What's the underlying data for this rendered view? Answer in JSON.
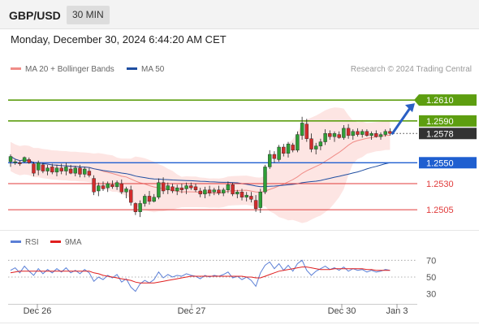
{
  "header": {
    "pair": "GBP/USD",
    "timeframe": "30 MIN"
  },
  "timestamp": "Monday, December 30, 2024 6:44:20 AM CET",
  "legend": {
    "ma20": {
      "label": "MA 20 + Bollinger Bands",
      "color": "#f08c87"
    },
    "ma50": {
      "label": "MA 50",
      "color": "#1f4ea1"
    },
    "credit": "Research © 2024 Trading Central"
  },
  "rsi_legend": {
    "rsi": {
      "label": "RSI",
      "color": "#5b7fd6"
    },
    "ma9": {
      "label": "9MA",
      "color": "#e01f1f"
    }
  },
  "chart_data": [
    {
      "type": "candlestick",
      "ylim": [
        1.2488,
        1.2628
      ],
      "x_axis": {
        "ticks": [
          "Dec 26",
          "Dec 27",
          "Dec 30",
          "Jan 3"
        ]
      },
      "levels": [
        {
          "value": 1.261,
          "label": "1.2610",
          "kind": "target",
          "color": "#5d9e10"
        },
        {
          "value": 1.259,
          "label": "1.2590",
          "kind": "resistance",
          "color": "#5d9e10"
        },
        {
          "value": 1.2578,
          "label": "1.2578",
          "kind": "last-price",
          "color": "#333333"
        },
        {
          "value": 1.255,
          "label": "1.2550",
          "kind": "pivot",
          "color": "#1f5fd0"
        },
        {
          "value": 1.253,
          "label": "1.2530",
          "kind": "support",
          "color": "#e03a3a"
        },
        {
          "value": 1.2505,
          "label": "1.2505",
          "kind": "support",
          "color": "#e03a3a"
        }
      ],
      "candles": [
        [
          1.2551,
          1.2558,
          1.2546,
          1.2556
        ],
        [
          1.255,
          1.2553,
          1.2548,
          1.2551
        ],
        [
          1.255,
          1.2552,
          1.2547,
          1.2549
        ],
        [
          1.2551,
          1.2556,
          1.255,
          1.2555
        ],
        [
          1.2553,
          1.2555,
          1.2549,
          1.255
        ],
        [
          1.2549,
          1.2551,
          1.2537,
          1.254
        ],
        [
          1.2543,
          1.2552,
          1.2538,
          1.255
        ],
        [
          1.2548,
          1.255,
          1.254,
          1.2542
        ],
        [
          1.2542,
          1.2548,
          1.2538,
          1.2545
        ],
        [
          1.2546,
          1.2549,
          1.2539,
          1.2541
        ],
        [
          1.2541,
          1.2548,
          1.2537,
          1.2545
        ],
        [
          1.2545,
          1.2549,
          1.2539,
          1.2542
        ],
        [
          1.2542,
          1.255,
          1.2538,
          1.2546
        ],
        [
          1.2544,
          1.2548,
          1.2539,
          1.254
        ],
        [
          1.254,
          1.2547,
          1.2537,
          1.2545
        ],
        [
          1.2545,
          1.2548,
          1.2536,
          1.2539
        ],
        [
          1.2539,
          1.2546,
          1.2536,
          1.2544
        ],
        [
          1.2542,
          1.2545,
          1.2536,
          1.2538
        ],
        [
          1.2535,
          1.2538,
          1.2519,
          1.2522
        ],
        [
          1.2523,
          1.2531,
          1.2518,
          1.2528
        ],
        [
          1.2528,
          1.2532,
          1.2523,
          1.2525
        ],
        [
          1.2526,
          1.2532,
          1.2522,
          1.253
        ],
        [
          1.2529,
          1.2533,
          1.2525,
          1.2527
        ],
        [
          1.2527,
          1.2533,
          1.2524,
          1.2531
        ],
        [
          1.253,
          1.2534,
          1.252,
          1.2522
        ],
        [
          1.2522,
          1.2527,
          1.2516,
          1.2525
        ],
        [
          1.2524,
          1.2528,
          1.2509,
          1.2512
        ],
        [
          1.2511,
          1.2512,
          1.25,
          1.2503
        ],
        [
          1.2503,
          1.2514,
          1.2498,
          1.2511
        ],
        [
          1.2511,
          1.252,
          1.2508,
          1.2518
        ],
        [
          1.2518,
          1.2523,
          1.251,
          1.2513
        ],
        [
          1.2513,
          1.252,
          1.2512,
          1.2517
        ],
        [
          1.2517,
          1.2535,
          1.2515,
          1.2531
        ],
        [
          1.2531,
          1.2536,
          1.252,
          1.2523
        ],
        [
          1.2524,
          1.2531,
          1.252,
          1.2528
        ],
        [
          1.2527,
          1.253,
          1.2521,
          1.2523
        ],
        [
          1.2523,
          1.2529,
          1.2519,
          1.2526
        ],
        [
          1.2526,
          1.253,
          1.2521,
          1.2524
        ],
        [
          1.2525,
          1.2531,
          1.252,
          1.2528
        ],
        [
          1.2528,
          1.2531,
          1.2524,
          1.2526
        ],
        [
          1.2527,
          1.253,
          1.2522,
          1.2524
        ],
        [
          1.2523,
          1.2526,
          1.2517,
          1.252
        ],
        [
          1.252,
          1.2527,
          1.2516,
          1.2524
        ],
        [
          1.2524,
          1.2528,
          1.2518,
          1.2521
        ],
        [
          1.2522,
          1.2526,
          1.2519,
          1.2524
        ],
        [
          1.2524,
          1.2528,
          1.2519,
          1.2521
        ],
        [
          1.2521,
          1.2526,
          1.2518,
          1.2524
        ],
        [
          1.2524,
          1.2532,
          1.2521,
          1.2529
        ],
        [
          1.2529,
          1.2531,
          1.2518,
          1.252
        ],
        [
          1.252,
          1.2524,
          1.2516,
          1.2522
        ],
        [
          1.2522,
          1.2525,
          1.2514,
          1.2517
        ],
        [
          1.2517,
          1.2522,
          1.2513,
          1.2519
        ],
        [
          1.2518,
          1.2522,
          1.2512,
          1.2515
        ],
        [
          1.2514,
          1.2519,
          1.2503,
          1.2506
        ],
        [
          1.2507,
          1.2525,
          1.2502,
          1.2522
        ],
        [
          1.2522,
          1.2548,
          1.252,
          1.2546
        ],
        [
          1.2546,
          1.2562,
          1.2544,
          1.2558
        ],
        [
          1.2558,
          1.2561,
          1.255,
          1.2554
        ],
        [
          1.2553,
          1.2567,
          1.2551,
          1.2565
        ],
        [
          1.2565,
          1.2568,
          1.2556,
          1.2559
        ],
        [
          1.2559,
          1.257,
          1.2555,
          1.2568
        ],
        [
          1.2567,
          1.2569,
          1.256,
          1.2562
        ],
        [
          1.2562,
          1.258,
          1.256,
          1.2577
        ],
        [
          1.2576,
          1.2594,
          1.2572,
          1.2588
        ],
        [
          1.2587,
          1.2592,
          1.257,
          1.2573
        ],
        [
          1.2573,
          1.2578,
          1.256,
          1.2563
        ],
        [
          1.2563,
          1.2569,
          1.2558,
          1.2566
        ],
        [
          1.2566,
          1.2573,
          1.2562,
          1.257
        ],
        [
          1.257,
          1.2582,
          1.2567,
          1.2578
        ],
        [
          1.2578,
          1.2581,
          1.2572,
          1.2575
        ],
        [
          1.2575,
          1.258,
          1.257,
          1.2578
        ],
        [
          1.2577,
          1.258,
          1.2573,
          1.2574
        ],
        [
          1.2574,
          1.2586,
          1.2572,
          1.2583
        ],
        [
          1.2583,
          1.2587,
          1.2573,
          1.2576
        ],
        [
          1.2576,
          1.2582,
          1.2572,
          1.258
        ],
        [
          1.258,
          1.2583,
          1.2575,
          1.2577
        ],
        [
          1.2577,
          1.2582,
          1.2574,
          1.258
        ],
        [
          1.258,
          1.2582,
          1.2575,
          1.2576
        ],
        [
          1.2576,
          1.258,
          1.2572,
          1.2578
        ],
        [
          1.2578,
          1.2581,
          1.2574,
          1.2575
        ],
        [
          1.2575,
          1.2579,
          1.2572,
          1.2577
        ],
        [
          1.2577,
          1.2582,
          1.2575,
          1.258
        ],
        [
          1.258,
          1.2583,
          1.2576,
          1.2578
        ]
      ]
    },
    {
      "type": "line",
      "ylim": [
        20,
        80
      ],
      "y_ticks": [
        30,
        50,
        70
      ],
      "series": [
        {
          "name": "RSI",
          "values": [
            58,
            61,
            55,
            63,
            57,
            52,
            60,
            54,
            59,
            55,
            60,
            56,
            61,
            55,
            58,
            54,
            59,
            55,
            45,
            50,
            47,
            52,
            49,
            53,
            44,
            48,
            38,
            33,
            42,
            46,
            43,
            47,
            56,
            49,
            53,
            50,
            52,
            51,
            54,
            52,
            51,
            48,
            52,
            50,
            52,
            51,
            53,
            56,
            49,
            51,
            47,
            50,
            46,
            39,
            55,
            64,
            68,
            60,
            66,
            58,
            64,
            57,
            66,
            70,
            58,
            52,
            57,
            60,
            63,
            59,
            61,
            58,
            62,
            57,
            60,
            58,
            59,
            56,
            58,
            56,
            57,
            59,
            58
          ]
        },
        {
          "name": "9MA",
          "values": [
            55,
            56,
            57,
            57,
            57,
            57,
            57,
            57,
            57,
            57,
            57,
            57,
            57,
            57,
            57,
            57,
            57,
            57,
            55,
            54,
            52,
            51,
            50,
            49,
            48,
            47,
            46,
            44,
            43,
            43,
            43,
            43,
            44,
            45,
            46,
            47,
            48,
            49,
            50,
            51,
            51,
            51,
            51,
            51,
            51,
            51,
            51,
            51,
            51,
            51,
            51,
            50,
            50,
            49,
            49,
            51,
            53,
            55,
            57,
            58,
            59,
            60,
            61,
            62,
            62,
            61,
            60,
            59,
            59,
            59,
            60,
            60,
            60,
            60,
            60,
            60,
            60,
            59,
            59,
            58,
            58,
            58,
            58
          ]
        }
      ]
    }
  ]
}
